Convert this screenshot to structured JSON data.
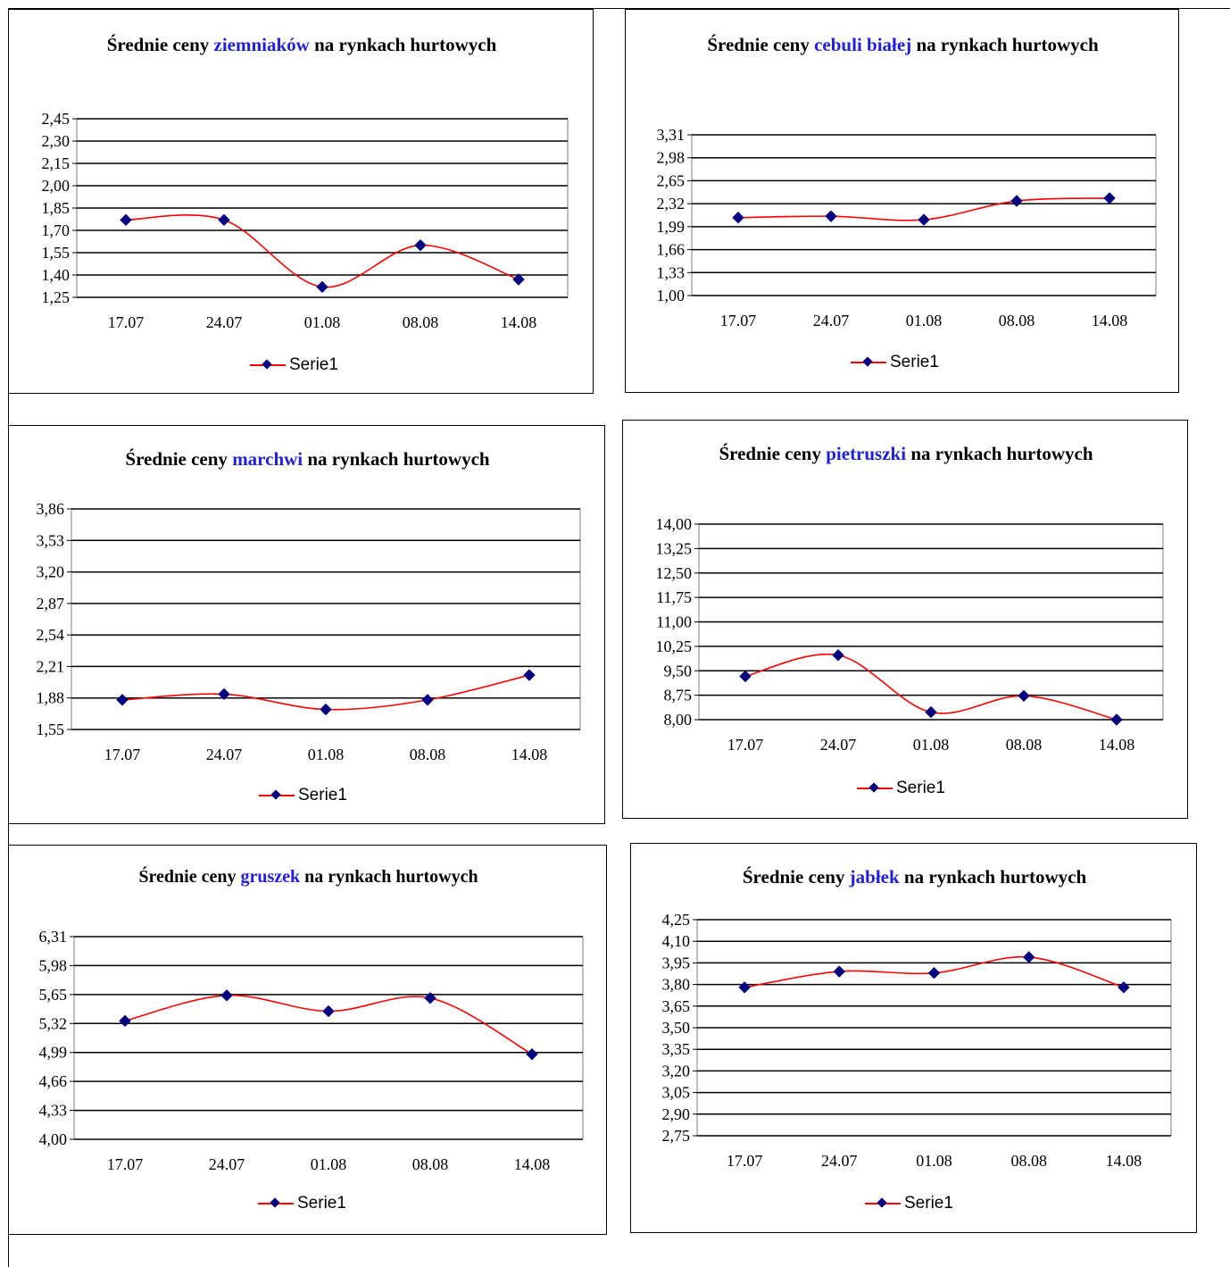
{
  "chart_data": [
    {
      "type": "line",
      "title": {
        "pre": "Średnie ceny ",
        "hl": "ziemniaków",
        "post": "  na rynkach hurtowych"
      },
      "categories": [
        "17.07",
        "24.07",
        "01.08",
        "08.08",
        "14.08"
      ],
      "series": [
        {
          "name": "Serie1",
          "values": [
            1.77,
            1.77,
            1.32,
            1.6,
            1.37
          ]
        }
      ],
      "yticks": [
        "1,25",
        "1,40",
        "1,55",
        "1,70",
        "1,85",
        "2,00",
        "2,15",
        "2,30",
        "2,45"
      ],
      "ylim": [
        1.25,
        2.45
      ],
      "grid": true,
      "legend": "bottom",
      "colors": {
        "line": "#ff0000",
        "marker": "#000080",
        "highlight": "#1f1fdf"
      }
    },
    {
      "type": "line",
      "title": {
        "pre": "Średnie ceny ",
        "hl": "cebuli białej",
        "post": " na rynkach hurtowych"
      },
      "categories": [
        "17.07",
        "24.07",
        "01.08",
        "08.08",
        "14.08"
      ],
      "series": [
        {
          "name": "Serie1",
          "values": [
            2.12,
            2.14,
            2.09,
            2.36,
            2.4
          ]
        }
      ],
      "yticks": [
        "1,00",
        "1,33",
        "1,66",
        "1,99",
        "2,32",
        "2,65",
        "2,98",
        "3,31"
      ],
      "ylim": [
        1.0,
        3.31
      ],
      "grid": true,
      "legend": "bottom",
      "colors": {
        "line": "#ff0000",
        "marker": "#000080",
        "highlight": "#1f1fdf"
      }
    },
    {
      "type": "line",
      "title": {
        "pre": "Średnie ceny ",
        "hl": "marchwi",
        "post": "  na rynkach  hurtowych"
      },
      "categories": [
        "17.07",
        "24.07",
        "01.08",
        "08.08",
        "14.08"
      ],
      "series": [
        {
          "name": "Serie1",
          "values": [
            1.86,
            1.92,
            1.76,
            1.86,
            2.12
          ]
        }
      ],
      "yticks": [
        "1,55",
        "1,88",
        "2,21",
        "2,54",
        "2,87",
        "3,20",
        "3,53",
        "3,86"
      ],
      "ylim": [
        1.55,
        3.86
      ],
      "grid": true,
      "legend": "bottom",
      "colors": {
        "line": "#ff0000",
        "marker": "#000080",
        "highlight": "#1f1fdf"
      }
    },
    {
      "type": "line",
      "title": {
        "pre": "Średnie ceny ",
        "hl": "pietruszki",
        "post": " na rynkach hurtowych"
      },
      "categories": [
        "17.07",
        "24.07",
        "01.08",
        "08.08",
        "14.08"
      ],
      "series": [
        {
          "name": "Serie1",
          "values": [
            9.33,
            9.98,
            8.23,
            8.73,
            8.0
          ]
        }
      ],
      "yticks": [
        "8,00",
        "8,75",
        "9,50",
        "10,25",
        "11,00",
        "11,75",
        "12,50",
        "13,25",
        "14,00"
      ],
      "ylim": [
        8.0,
        14.0
      ],
      "grid": true,
      "legend": "bottom",
      "colors": {
        "line": "#ff0000",
        "marker": "#000080",
        "highlight": "#1f1fdf"
      }
    },
    {
      "type": "line",
      "title": {
        "pre": "Średnie ceny ",
        "hl": "gruszek",
        "post": " na rynkach hurtowych"
      },
      "categories": [
        "17.07",
        "24.07",
        "01.08",
        "08.08",
        "14.08"
      ],
      "series": [
        {
          "name": "Serie1",
          "values": [
            5.35,
            5.64,
            5.46,
            5.61,
            4.97
          ]
        }
      ],
      "yticks": [
        "4,00",
        "4,33",
        "4,66",
        "4,99",
        "5,32",
        "5,65",
        "5,98",
        "6,31"
      ],
      "ylim": [
        4.0,
        6.31
      ],
      "grid": true,
      "legend": "bottom",
      "colors": {
        "line": "#ff0000",
        "marker": "#000080",
        "highlight": "#1f1fdf"
      }
    },
    {
      "type": "line",
      "title": {
        "pre": "Średnie ceny ",
        "hl": "jabłek",
        "post": "  na rynkach hurtowych"
      },
      "categories": [
        "17.07",
        "24.07",
        "01.08",
        "08.08",
        "14.08"
      ],
      "series": [
        {
          "name": "Serie1",
          "values": [
            3.78,
            3.89,
            3.88,
            3.99,
            3.78
          ]
        }
      ],
      "yticks": [
        "2,75",
        "2,90",
        "3,05",
        "3,20",
        "3,35",
        "3,50",
        "3,65",
        "3,80",
        "3,95",
        "4,10",
        "4,25"
      ],
      "ylim": [
        2.75,
        4.25
      ],
      "grid": true,
      "legend": "bottom",
      "colors": {
        "line": "#ff0000",
        "marker": "#000080",
        "highlight": "#1f1fdf"
      }
    }
  ]
}
